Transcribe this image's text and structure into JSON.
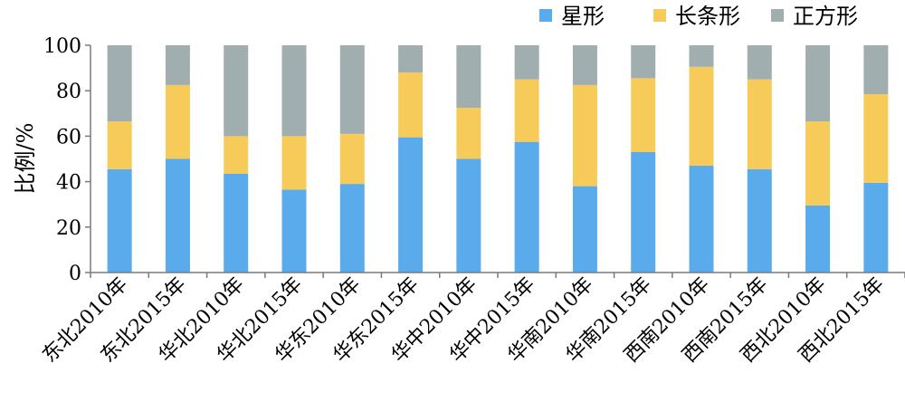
{
  "chart_data": {
    "type": "bar",
    "stacked": true,
    "ylabel": "比例/%",
    "xlabel": "",
    "ylim": [
      0,
      100
    ],
    "yticks": [
      0,
      20,
      40,
      60,
      80,
      100
    ],
    "grid": false,
    "legend_position": "top-right",
    "categories": [
      "东北2010年",
      "东北2015年",
      "华北2010年",
      "华北2015年",
      "华东2010年",
      "华东2015年",
      "华中2010年",
      "华中2015年",
      "华南2010年",
      "华南2015年",
      "西南2010年",
      "西南2015年",
      "西北2010年",
      "西北2015年"
    ],
    "series": [
      {
        "name": "星形",
        "color": "#5aabec",
        "values": [
          45.5,
          50.0,
          43.5,
          36.5,
          39.0,
          59.5,
          50.0,
          57.5,
          38.0,
          53.0,
          47.0,
          45.5,
          29.5,
          39.5
        ]
      },
      {
        "name": "长条形",
        "color": "#f7cb5a",
        "values": [
          21.0,
          32.5,
          16.5,
          23.5,
          22.0,
          28.5,
          22.5,
          27.5,
          44.5,
          32.5,
          43.5,
          39.5,
          37.0,
          39.0
        ]
      },
      {
        "name": "正方形",
        "color": "#a0aeb0",
        "values": [
          33.5,
          17.5,
          40.0,
          40.0,
          39.0,
          12.0,
          27.5,
          15.0,
          17.5,
          14.5,
          9.5,
          15.0,
          33.5,
          21.5
        ]
      }
    ]
  }
}
